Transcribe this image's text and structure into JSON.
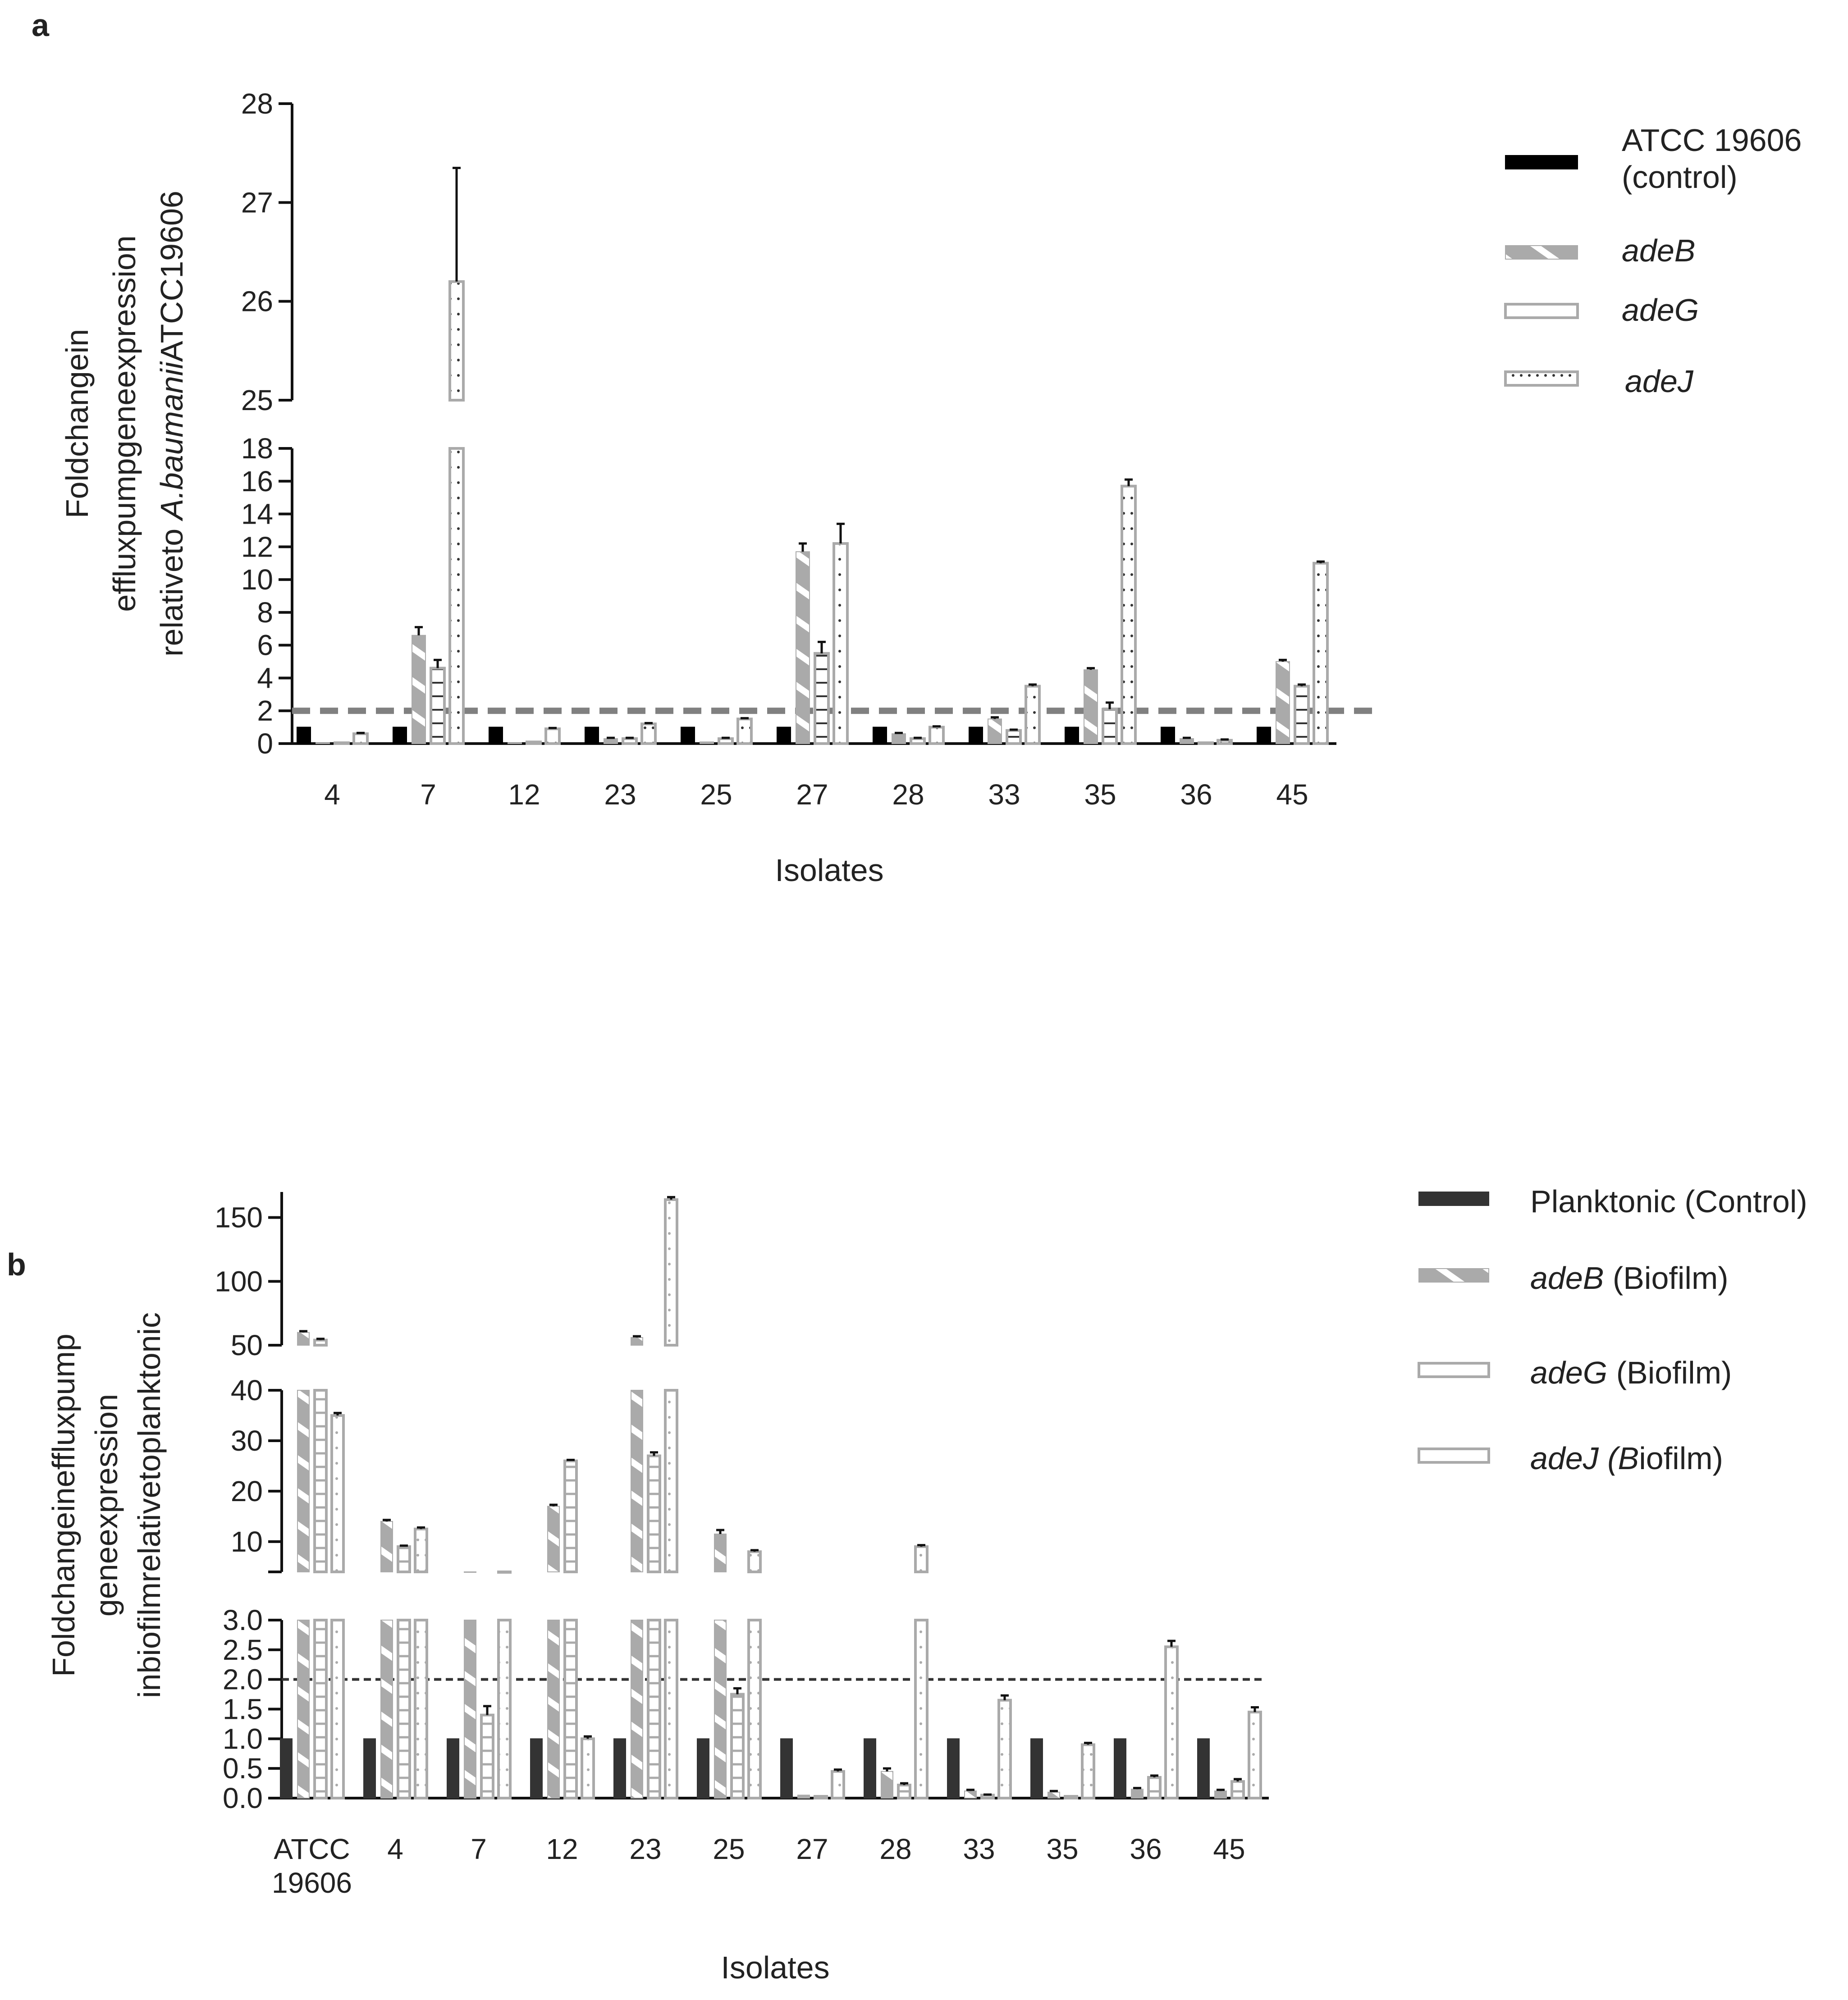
{
  "panels": [
    {
      "letter": "a",
      "ylabel_lines": [
        {
          "parts": [
            {
              "text": "Foldchangein",
              "italic": false
            }
          ]
        },
        {
          "parts": [
            {
              "text": "effluxpumpgeneexpression",
              "italic": false
            }
          ]
        },
        {
          "parts": [
            {
              "text": "relativeto ",
              "italic": false
            },
            {
              "text": "A.baumanii",
              "italic": true
            },
            {
              "text": "ATCC19606",
              "italic": false
            }
          ]
        }
      ],
      "xlabel": "Isolates",
      "legend": [
        {
          "lines": [
            "ATCC 19606",
            "(control)"
          ],
          "italic": false
        },
        {
          "lines": [
            "adeB"
          ],
          "italic": true
        },
        {
          "lines": [
            "adeG"
          ],
          "italic": true
        },
        {
          "lines": [
            "adeJ"
          ],
          "italic": true
        }
      ]
    },
    {
      "letter": "b",
      "ylabel_lines": [
        {
          "parts": [
            {
              "text": "Foldchangeineffluxpump",
              "italic": false
            }
          ]
        },
        {
          "parts": [
            {
              "text": "geneexpression",
              "italic": false
            }
          ]
        },
        {
          "parts": [
            {
              "text": "inbiofilmrelativetoplanktonic",
              "italic": false
            }
          ]
        }
      ],
      "xlabel": "Isolates",
      "legend": [
        {
          "parts": [
            {
              "text": "Planktonic (Control)",
              "italic": false
            }
          ]
        },
        {
          "parts": [
            {
              "text": "adeB",
              "italic": true
            },
            {
              "text": " (Biofilm)",
              "italic": false
            }
          ]
        },
        {
          "parts": [
            {
              "text": "adeG",
              "italic": true
            },
            {
              "text": " (Biofilm)",
              "italic": false
            }
          ]
        },
        {
          "parts": [
            {
              "text": "adeJ (B",
              "italic": true
            },
            {
              "text": "iofilm)",
              "italic": false
            }
          ]
        }
      ]
    }
  ],
  "chart_data": [
    {
      "type": "bar",
      "panel": "a",
      "categories": [
        "4",
        "7",
        "12",
        "23",
        "25",
        "27",
        "28",
        "33",
        "35",
        "36",
        "45"
      ],
      "series": [
        {
          "name": "ATCC 19606 (control)",
          "values": [
            1,
            1,
            1,
            1,
            1,
            1,
            1,
            1,
            1,
            1,
            1
          ],
          "errors": [
            0,
            0,
            0,
            0,
            0,
            0,
            0,
            0,
            0,
            0,
            0
          ]
        },
        {
          "name": "adeB",
          "values": [
            0.05,
            6.6,
            0.05,
            0.3,
            0.1,
            11.7,
            0.6,
            1.5,
            4.5,
            0.3,
            5.0
          ],
          "errors": [
            0,
            0.5,
            0,
            0.05,
            0,
            0.5,
            0.05,
            0.1,
            0.1,
            0.05,
            0.1
          ]
        },
        {
          "name": "adeG",
          "values": [
            0.05,
            4.6,
            0.1,
            0.3,
            0.3,
            5.5,
            0.3,
            0.8,
            2.1,
            0.05,
            3.5
          ],
          "errors": [
            0,
            0.5,
            0,
            0.05,
            0.05,
            0.7,
            0.05,
            0.05,
            0.4,
            0,
            0.1
          ]
        },
        {
          "name": "adeJ",
          "values": [
            0.6,
            26.2,
            0.9,
            1.2,
            1.5,
            12.2,
            1.0,
            3.5,
            15.7,
            0.2,
            11.0
          ],
          "errors": [
            0.05,
            1.15,
            0.05,
            0.05,
            0.05,
            1.2,
            0.05,
            0.1,
            0.4,
            0.05,
            0.1
          ]
        }
      ],
      "xlabel": "Isolates",
      "ylabel": "Foldchangein effluxpumpgeneexpression relativeto A.baumaniiATCC19606",
      "y_segments": [
        {
          "range": [
            0,
            18
          ],
          "ticks": [
            0,
            2,
            4,
            6,
            8,
            10,
            12,
            14,
            16,
            18
          ]
        },
        {
          "range": [
            25,
            28
          ],
          "ticks": [
            25,
            26,
            27,
            28
          ]
        }
      ],
      "threshold": 2,
      "legend_position": "top-right"
    },
    {
      "type": "bar",
      "panel": "b",
      "categories": [
        "ATCC 19606",
        "4",
        "7",
        "12",
        "23",
        "25",
        "27",
        "28",
        "33",
        "35",
        "36",
        "45"
      ],
      "series": [
        {
          "name": "Planktonic (Control)",
          "values": [
            1,
            1,
            1,
            1,
            1,
            1,
            1,
            1,
            1,
            1,
            1,
            1
          ],
          "errors": [
            0,
            0,
            0,
            0,
            0,
            0,
            0,
            0,
            0,
            0,
            0,
            0
          ]
        },
        {
          "name": "adeB (Biofilm)",
          "values": [
            60,
            14,
            4,
            17,
            56,
            11.5,
            0.05,
            0.45,
            0.12,
            0.1,
            0.15,
            0.12
          ],
          "errors": [
            1,
            0.3,
            0,
            0.3,
            1,
            0.8,
            0,
            0.05,
            0.02,
            0.02,
            0.02,
            0.02
          ]
        },
        {
          "name": "adeG (Biofilm)",
          "values": [
            54,
            9,
            1.4,
            26,
            27,
            1.75,
            0.03,
            0.22,
            0.05,
            0.03,
            0.35,
            0.28
          ],
          "errors": [
            1,
            0.2,
            0.15,
            0.2,
            0.7,
            0.1,
            0,
            0.03,
            0.01,
            0,
            0.03,
            0.04
          ]
        },
        {
          "name": "adeJ (Biofilm)",
          "values": [
            35,
            12.5,
            4,
            1.0,
            164,
            8,
            0.45,
            9,
            1.65,
            0.9,
            2.55,
            1.45
          ],
          "errors": [
            0.5,
            0.3,
            0,
            0.04,
            2,
            0.3,
            0.03,
            0.3,
            0.08,
            0.03,
            0.1,
            0.08
          ]
        }
      ],
      "xlabel": "Isolates",
      "ylabel": "Foldchangeineffluxpump geneexpression inbiofilmrelativetoplanktonic",
      "y_segments": [
        {
          "range": [
            0,
            3
          ],
          "ticks": [
            "0.0",
            "0.5",
            "1.0",
            "1.5",
            "2.0",
            "2.5",
            "3.0"
          ]
        },
        {
          "range": [
            4,
            40
          ],
          "ticks": [
            10,
            20,
            30,
            40
          ]
        },
        {
          "range": [
            50,
            170
          ],
          "ticks": [
            50,
            100,
            150
          ]
        }
      ],
      "threshold": 2,
      "legend_position": "top-right"
    }
  ]
}
